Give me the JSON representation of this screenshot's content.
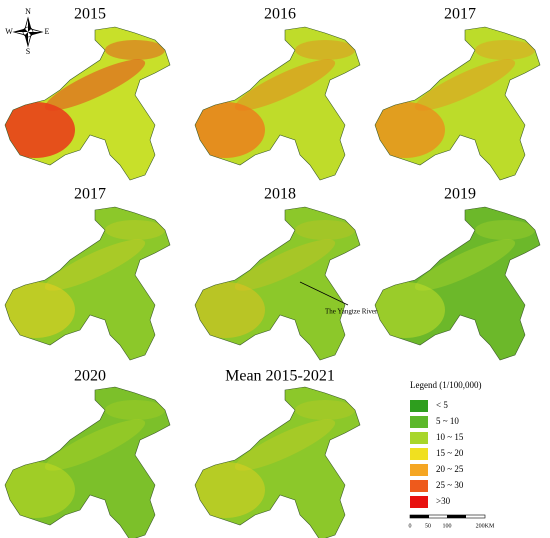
{
  "panels": [
    {
      "title": "2015"
    },
    {
      "title": "2016"
    },
    {
      "title": "2017"
    },
    {
      "title": "2017"
    },
    {
      "title": "2018"
    },
    {
      "title": "2019"
    },
    {
      "title": "2020"
    },
    {
      "title": "Mean 2015-2021"
    }
  ],
  "compass": {
    "north": "N",
    "east": "E",
    "south": "S",
    "west": "W"
  },
  "annotation": "The Yangtze River",
  "legend": {
    "title": "Legend (1/100,000)",
    "items": [
      {
        "label": "< 5",
        "color": "#2e9e1e"
      },
      {
        "label": "5 ~ 10",
        "color": "#5cb82a"
      },
      {
        "label": "10 ~ 15",
        "color": "#a8d62a"
      },
      {
        "label": "15 ~ 20",
        "color": "#f0e020"
      },
      {
        "label": "20 ~ 25",
        "color": "#f5a623"
      },
      {
        "label": "25 ~ 30",
        "color": "#ee5a1c"
      },
      {
        "label": ">30",
        "color": "#e8100e"
      }
    ]
  },
  "scale_bar": {
    "labels": [
      "0",
      "50",
      "100",
      "200KM"
    ]
  }
}
